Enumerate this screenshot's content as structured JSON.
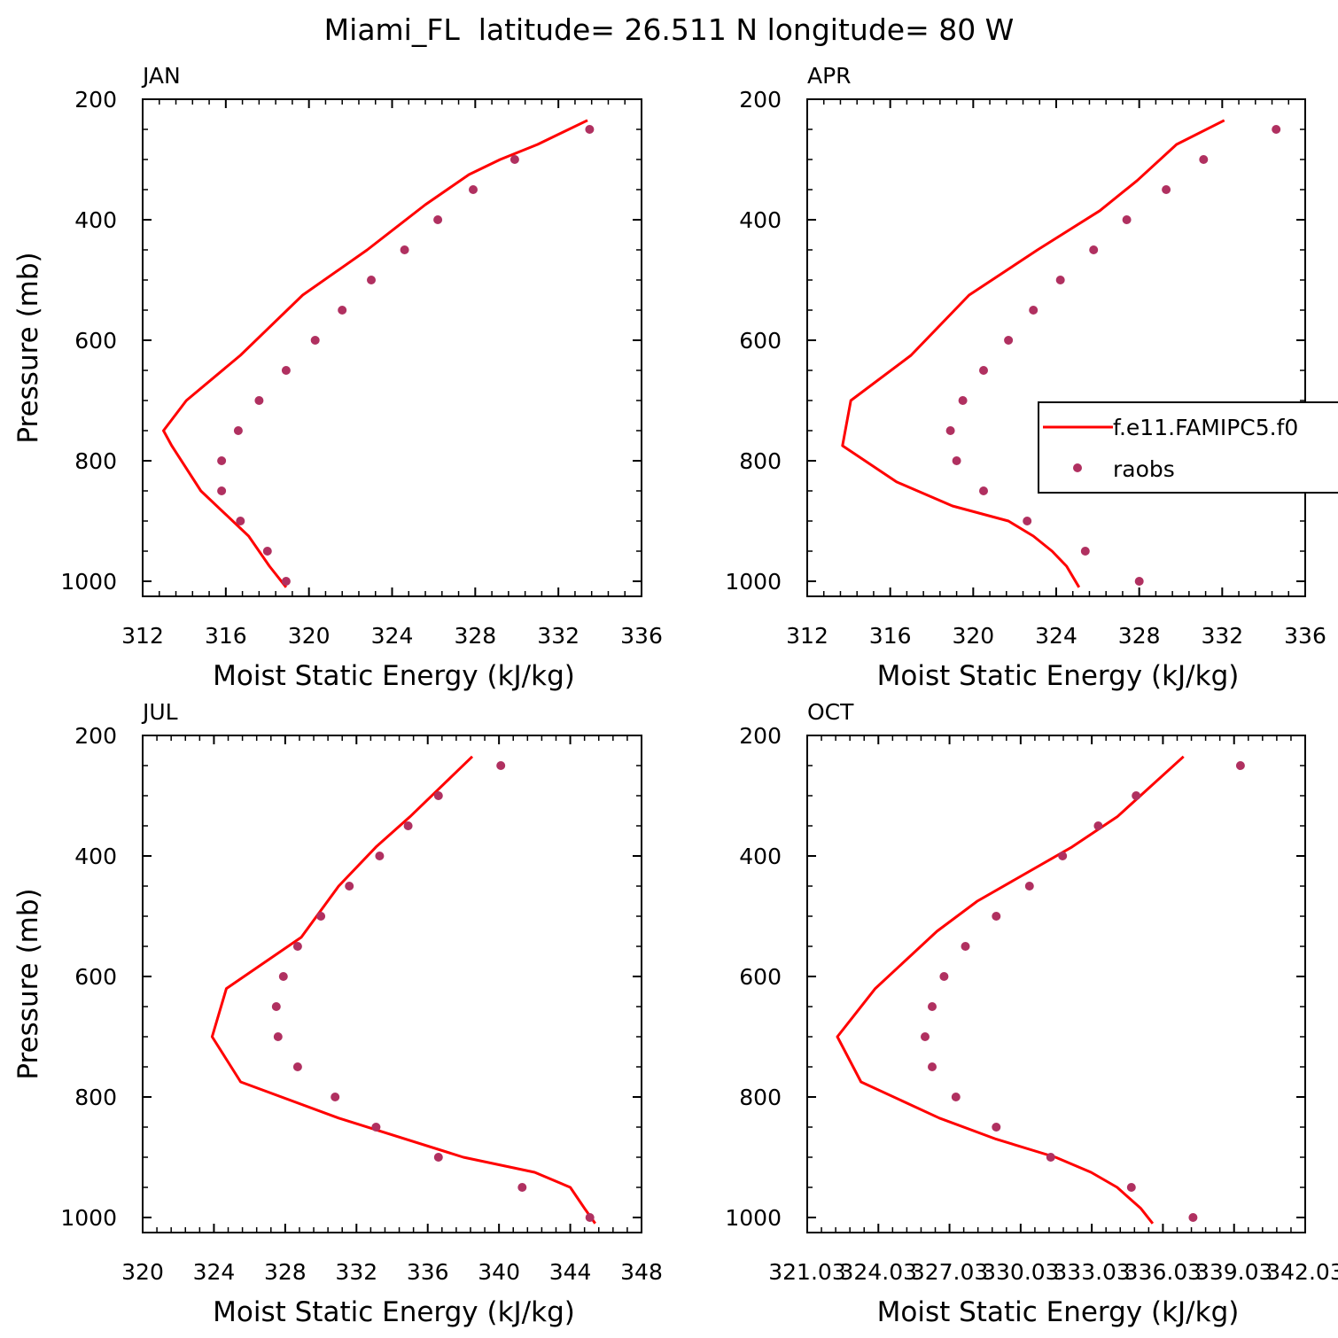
{
  "figure": {
    "title": "Miami_FL  latitude= 26.511 N longitude= 80 W"
  },
  "legend": {
    "entries": [
      {
        "label": "f.e11.FAMIPC5.f0",
        "kind": "line",
        "color": "#ff0000"
      },
      {
        "label": "raobs",
        "kind": "marker",
        "color": "#b03060"
      }
    ]
  },
  "chart_data": [
    {
      "type": "line",
      "panel_label": "JAN",
      "xlabel": "Moist Static Energy (kJ/kg)",
      "ylabel": "Pressure (mb)",
      "xlim": [
        312,
        336
      ],
      "ylim": [
        1025,
        200
      ],
      "xticks": [
        312,
        316,
        320,
        324,
        328,
        332,
        336
      ],
      "xtick_labels": [
        "312",
        "316",
        "320",
        "324",
        "328",
        "332",
        "336"
      ],
      "yticks": [
        200,
        400,
        600,
        800,
        1000
      ],
      "ytick_labels": [
        "200",
        "400",
        "600",
        "800",
        "1000"
      ],
      "model": {
        "name": "f.e11.FAMIPC5.f0",
        "color": "#ff0000",
        "x": [
          318.9,
          318.1,
          317.1,
          314.8,
          313.4,
          313.0,
          314.1,
          316.7,
          319.7,
          322.8,
          325.6,
          327.7,
          329.2,
          331.0,
          333.4
        ],
        "y": [
          1010,
          975,
          925,
          850,
          775,
          750,
          700,
          625,
          525,
          450,
          375,
          325,
          300,
          275,
          235
        ]
      },
      "raobs": {
        "name": "raobs",
        "color": "#b03060",
        "x": [
          318.9,
          318.0,
          316.7,
          315.8,
          315.8,
          316.6,
          317.6,
          318.9,
          320.3,
          321.6,
          323.0,
          324.6,
          326.2,
          327.9,
          329.9,
          333.5
        ],
        "y": [
          1000,
          950,
          900,
          850,
          800,
          750,
          700,
          650,
          600,
          550,
          500,
          450,
          400,
          350,
          300,
          250
        ]
      }
    },
    {
      "type": "line",
      "panel_label": "APR",
      "xlabel": "Moist Static Energy (kJ/kg)",
      "ylabel": "",
      "xlim": [
        312,
        336
      ],
      "ylim": [
        1025,
        200
      ],
      "xticks": [
        312,
        316,
        320,
        324,
        328,
        332,
        336
      ],
      "xtick_labels": [
        "312",
        "316",
        "320",
        "324",
        "328",
        "332",
        "336"
      ],
      "yticks": [
        200,
        400,
        600,
        800,
        1000
      ],
      "ytick_labels": [
        "200",
        "400",
        "600",
        "800",
        "1000"
      ],
      "model": {
        "name": "f.e11.FAMIPC5.f0",
        "color": "#ff0000",
        "x": [
          325.1,
          324.5,
          323.8,
          322.9,
          321.7,
          319.0,
          316.3,
          313.7,
          314.1,
          317.0,
          319.8,
          323.1,
          326.1,
          327.9,
          329.8,
          332.1
        ],
        "y": [
          1010,
          975,
          950,
          925,
          900,
          875,
          835,
          775,
          700,
          625,
          525,
          450,
          385,
          335,
          275,
          235
        ]
      },
      "raobs": {
        "name": "raobs",
        "color": "#b03060",
        "x": [
          328.0,
          325.4,
          322.6,
          320.5,
          319.2,
          318.9,
          319.5,
          320.5,
          321.7,
          322.9,
          324.2,
          325.8,
          327.4,
          329.3,
          331.1,
          334.6
        ],
        "y": [
          1000,
          950,
          900,
          850,
          800,
          750,
          700,
          650,
          600,
          550,
          500,
          450,
          400,
          350,
          300,
          250
        ]
      }
    },
    {
      "type": "line",
      "panel_label": "JUL",
      "xlabel": "Moist Static Energy (kJ/kg)",
      "ylabel": "Pressure (mb)",
      "xlim": [
        320,
        348
      ],
      "ylim": [
        1025,
        200
      ],
      "xticks": [
        320,
        324,
        328,
        332,
        336,
        340,
        344,
        348
      ],
      "xtick_labels": [
        "320",
        "324",
        "328",
        "332",
        "336",
        "340",
        "344",
        "348"
      ],
      "yticks": [
        200,
        400,
        600,
        800,
        1000
      ],
      "ytick_labels": [
        "200",
        "400",
        "600",
        "800",
        "1000"
      ],
      "model": {
        "name": "f.e11.FAMIPC5.f0",
        "color": "#ff0000",
        "x": [
          345.4,
          344.8,
          344.0,
          342.0,
          338.0,
          331.0,
          325.5,
          323.9,
          324.7,
          328.9,
          331.0,
          333.1,
          335.0,
          338.5
        ],
        "y": [
          1010,
          985,
          950,
          925,
          900,
          835,
          775,
          700,
          620,
          535,
          450,
          385,
          335,
          235
        ]
      },
      "raobs": {
        "name": "raobs",
        "color": "#b03060",
        "x": [
          345.1,
          341.3,
          336.6,
          333.1,
          330.8,
          328.7,
          327.6,
          327.5,
          327.9,
          328.7,
          330.0,
          331.6,
          333.3,
          334.9,
          336.6,
          340.1
        ],
        "y": [
          1000,
          950,
          900,
          850,
          800,
          750,
          700,
          650,
          600,
          550,
          500,
          450,
          400,
          350,
          300,
          250
        ]
      }
    },
    {
      "type": "line",
      "panel_label": "OCT",
      "xlabel": "Moist Static Energy (kJ/kg)",
      "ylabel": "",
      "xlim": [
        321.03,
        342.03
      ],
      "ylim": [
        1025,
        200
      ],
      "xticks": [
        321.03,
        324.03,
        327.03,
        330.03,
        333.03,
        336.03,
        339.03,
        342.03
      ],
      "xtick_labels": [
        "321.03",
        "324.03",
        "327.03",
        "330.03",
        "333.03",
        "336.03",
        "339.03",
        "342.03"
      ],
      "yticks": [
        200,
        400,
        600,
        800,
        1000
      ],
      "ytick_labels": [
        "200",
        "400",
        "600",
        "800",
        "1000"
      ],
      "model": {
        "name": "f.e11.FAMIPC5.f0",
        "color": "#ff0000",
        "x": [
          335.6,
          335.1,
          334.1,
          333.0,
          331.5,
          329.0,
          326.6,
          323.3,
          322.3,
          323.9,
          326.5,
          328.2,
          332.2,
          334.1,
          336.9
        ],
        "y": [
          1010,
          985,
          950,
          925,
          900,
          870,
          835,
          775,
          700,
          620,
          525,
          475,
          385,
          335,
          235
        ]
      },
      "raobs": {
        "name": "raobs",
        "color": "#b03060",
        "x": [
          337.3,
          334.7,
          331.3,
          329.0,
          327.3,
          326.3,
          326.0,
          326.3,
          326.8,
          327.7,
          329.0,
          330.4,
          331.8,
          333.3,
          334.9,
          339.3
        ],
        "y": [
          1000,
          950,
          900,
          850,
          800,
          750,
          700,
          650,
          600,
          550,
          500,
          450,
          400,
          350,
          300,
          250
        ]
      }
    }
  ]
}
